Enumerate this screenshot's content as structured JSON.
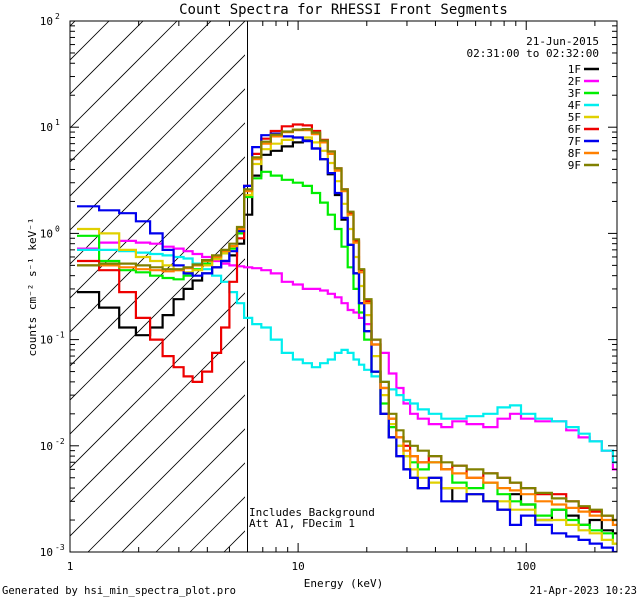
{
  "chart_data": {
    "type": "line",
    "title": "Count Spectra for RHESSI Front Segments",
    "date": "21-Jun-2015",
    "time_range": "02:31:00 to 02:32:00",
    "xlabel": "Energy (keV)",
    "ylabel": "counts cm⁻² s⁻¹ keV⁻¹",
    "x_scale": "log",
    "y_scale": "log",
    "xlim": [
      1,
      250
    ],
    "ylim": [
      0.001,
      100
    ],
    "x_ticks": [
      {
        "value": 1,
        "label": "1"
      },
      {
        "value": 10,
        "label": "10"
      },
      {
        "value": 100,
        "label": "100"
      }
    ],
    "y_ticks": [
      {
        "value": 0.001,
        "base": "10",
        "exp": "-3"
      },
      {
        "value": 0.01,
        "base": "10",
        "exp": "-2"
      },
      {
        "value": 0.1,
        "base": "10",
        "exp": "-1"
      },
      {
        "value": 1,
        "base": "10",
        "exp": "0"
      },
      {
        "value": 10,
        "base": "10",
        "exp": "1"
      },
      {
        "value": 100,
        "base": "10",
        "exp": "2"
      }
    ],
    "shaded_region": {
      "x_from": 1,
      "x_to": 6,
      "style": "diagonal hatch"
    },
    "threshold_line_x": 6,
    "annotation_lines": [
      "Includes Background",
      "Att A1, FDecim 1"
    ],
    "legend_position": "top-right",
    "energy_bins": [
      1.2,
      1.5,
      1.8,
      2.1,
      2.4,
      2.7,
      3.0,
      3.3,
      3.6,
      4.0,
      4.4,
      4.8,
      5.2,
      5.6,
      6.0,
      6.6,
      7.2,
      8.0,
      9.0,
      10.0,
      11.0,
      12.0,
      13.0,
      14.0,
      15.0,
      16.0,
      17.0,
      18.0,
      19.0,
      20.0,
      22.0,
      24.0,
      26.0,
      28.0,
      30.0,
      32.0,
      35.0,
      40.0,
      45.0,
      50.0,
      60.0,
      70.0,
      80.0,
      90.0,
      100.0,
      120.0,
      140.0,
      160.0,
      180.0,
      200.0,
      230.0,
      250.0
    ],
    "series": [
      {
        "name": "1F",
        "color": "#000000",
        "values": [
          0.28,
          0.2,
          0.13,
          0.11,
          0.13,
          0.17,
          0.24,
          0.3,
          0.36,
          0.42,
          0.48,
          0.55,
          0.62,
          0.8,
          1.5,
          3.5,
          5.5,
          6.0,
          6.6,
          7.2,
          7.5,
          6.3,
          5.0,
          3.6,
          2.3,
          1.35,
          0.78,
          0.42,
          0.22,
          0.12,
          0.05,
          0.02,
          0.012,
          0.008,
          0.006,
          0.005,
          0.004,
          0.005,
          0.004,
          0.003,
          0.0035,
          0.003,
          0.0025,
          0.0035,
          0.0028,
          0.002,
          0.0025,
          0.0022,
          0.0018,
          0.002,
          0.0016,
          0.0015
        ]
      },
      {
        "name": "2F",
        "color": "#ff00ff",
        "values": [
          0.72,
          0.82,
          0.85,
          0.82,
          0.8,
          0.75,
          0.72,
          0.68,
          0.64,
          0.6,
          0.55,
          0.52,
          0.5,
          0.49,
          0.48,
          0.47,
          0.45,
          0.42,
          0.35,
          0.33,
          0.3,
          0.3,
          0.29,
          0.27,
          0.25,
          0.22,
          0.19,
          0.18,
          0.16,
          0.14,
          0.1,
          0.075,
          0.048,
          0.035,
          0.025,
          0.02,
          0.018,
          0.016,
          0.015,
          0.017,
          0.016,
          0.015,
          0.018,
          0.02,
          0.018,
          0.017,
          0.017,
          0.014,
          0.012,
          0.011,
          0.009,
          0.006
        ]
      },
      {
        "name": "3F",
        "color": "#00ee00",
        "values": [
          0.95,
          0.55,
          0.45,
          0.43,
          0.4,
          0.38,
          0.37,
          0.4,
          0.46,
          0.52,
          0.58,
          0.65,
          0.72,
          1.0,
          2.2,
          3.3,
          3.8,
          3.5,
          3.2,
          3.0,
          2.8,
          2.4,
          1.95,
          1.5,
          1.1,
          0.75,
          0.48,
          0.3,
          0.18,
          0.1,
          0.05,
          0.025,
          0.015,
          0.01,
          0.008,
          0.007,
          0.006,
          0.007,
          0.006,
          0.0045,
          0.004,
          0.0045,
          0.0035,
          0.003,
          0.0028,
          0.0022,
          0.0025,
          0.002,
          0.0018,
          0.0016,
          0.0015,
          0.0012
        ]
      },
      {
        "name": "4F",
        "color": "#00eeee",
        "values": [
          0.7,
          0.7,
          0.68,
          0.66,
          0.64,
          0.62,
          0.6,
          0.58,
          0.52,
          0.46,
          0.4,
          0.35,
          0.28,
          0.22,
          0.16,
          0.14,
          0.13,
          0.1,
          0.075,
          0.065,
          0.06,
          0.055,
          0.06,
          0.065,
          0.075,
          0.08,
          0.075,
          0.065,
          0.058,
          0.052,
          0.045,
          0.04,
          0.034,
          0.03,
          0.027,
          0.025,
          0.022,
          0.02,
          0.018,
          0.018,
          0.019,
          0.02,
          0.023,
          0.024,
          0.02,
          0.018,
          0.017,
          0.015,
          0.013,
          0.011,
          0.009,
          0.007
        ]
      },
      {
        "name": "5F",
        "color": "#e0d000",
        "values": [
          1.1,
          1.0,
          0.7,
          0.6,
          0.55,
          0.5,
          0.45,
          0.43,
          0.45,
          0.5,
          0.57,
          0.65,
          0.75,
          1.05,
          2.3,
          4.5,
          6.2,
          7.0,
          7.6,
          8.0,
          8.0,
          7.2,
          6.0,
          4.6,
          3.1,
          1.9,
          1.1,
          0.6,
          0.32,
          0.17,
          0.07,
          0.03,
          0.016,
          0.01,
          0.008,
          0.006,
          0.005,
          0.0045,
          0.004,
          0.004,
          0.0035,
          0.003,
          0.003,
          0.0025,
          0.0025,
          0.002,
          0.002,
          0.0018,
          0.0016,
          0.0015,
          0.0013,
          0.0012
        ]
      },
      {
        "name": "6F",
        "color": "#ee0000",
        "values": [
          0.55,
          0.45,
          0.28,
          0.16,
          0.1,
          0.07,
          0.055,
          0.045,
          0.04,
          0.05,
          0.075,
          0.13,
          0.35,
          0.9,
          2.8,
          5.6,
          7.8,
          9.2,
          10.2,
          10.6,
          10.4,
          9.2,
          7.6,
          5.9,
          4.1,
          2.6,
          1.55,
          0.85,
          0.45,
          0.23,
          0.09,
          0.035,
          0.018,
          0.012,
          0.01,
          0.008,
          0.007,
          0.008,
          0.006,
          0.0065,
          0.005,
          0.0055,
          0.005,
          0.0045,
          0.004,
          0.0035,
          0.0035,
          0.003,
          0.0026,
          0.0024,
          0.0022,
          0.002
        ]
      },
      {
        "name": "7F",
        "color": "#0000ee",
        "values": [
          1.8,
          1.65,
          1.55,
          1.3,
          1.0,
          0.7,
          0.5,
          0.42,
          0.4,
          0.42,
          0.48,
          0.55,
          0.68,
          1.05,
          2.8,
          6.5,
          8.4,
          8.7,
          8.2,
          8.0,
          7.4,
          6.3,
          5.0,
          3.7,
          2.4,
          1.4,
          0.78,
          0.42,
          0.22,
          0.12,
          0.05,
          0.02,
          0.012,
          0.008,
          0.006,
          0.005,
          0.004,
          0.005,
          0.003,
          0.003,
          0.0035,
          0.003,
          0.0025,
          0.0018,
          0.0022,
          0.0018,
          0.0015,
          0.0014,
          0.0013,
          0.0012,
          0.0011,
          0.001
        ]
      },
      {
        "name": "8F",
        "color": "#ff8000",
        "values": [
          0.5,
          0.5,
          0.48,
          0.46,
          0.45,
          0.44,
          0.45,
          0.47,
          0.5,
          0.55,
          0.6,
          0.68,
          0.76,
          1.1,
          2.5,
          5.0,
          7.0,
          8.2,
          9.0,
          9.4,
          9.4,
          8.6,
          7.2,
          5.6,
          3.9,
          2.5,
          1.5,
          0.82,
          0.43,
          0.22,
          0.09,
          0.035,
          0.018,
          0.012,
          0.009,
          0.008,
          0.007,
          0.007,
          0.006,
          0.0055,
          0.005,
          0.0045,
          0.004,
          0.0038,
          0.0035,
          0.003,
          0.0028,
          0.0026,
          0.0024,
          0.0022,
          0.002,
          0.0018
        ]
      },
      {
        "name": "9F",
        "color": "#808000",
        "values": [
          0.5,
          0.52,
          0.52,
          0.5,
          0.48,
          0.46,
          0.46,
          0.48,
          0.51,
          0.56,
          0.62,
          0.7,
          0.8,
          1.15,
          2.6,
          5.2,
          7.3,
          8.5,
          9.1,
          9.5,
          9.6,
          8.9,
          7.5,
          5.9,
          4.1,
          2.6,
          1.6,
          0.88,
          0.46,
          0.24,
          0.1,
          0.04,
          0.02,
          0.014,
          0.011,
          0.01,
          0.009,
          0.008,
          0.007,
          0.0065,
          0.006,
          0.0055,
          0.005,
          0.0045,
          0.004,
          0.0036,
          0.0032,
          0.003,
          0.0027,
          0.0025,
          0.0022,
          0.002
        ]
      }
    ]
  },
  "footer": {
    "generated_by": "Generated by hsi_min_spectra_plot.pro",
    "timestamp": "21-Apr-2023 10:23"
  }
}
